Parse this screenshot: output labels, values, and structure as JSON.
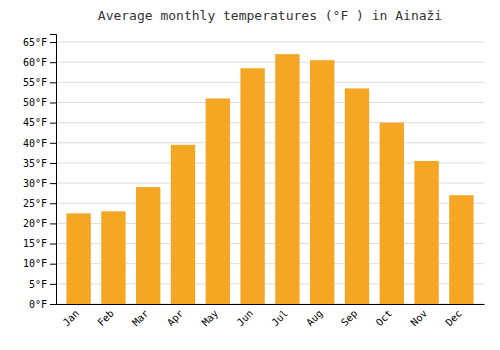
{
  "chart_data": {
    "type": "bar",
    "title": "Average monthly temperatures (°F ) in Ainaži",
    "categories": [
      "Jan",
      "Feb",
      "Mar",
      "Apr",
      "May",
      "Jun",
      "Jul",
      "Aug",
      "Sep",
      "Oct",
      "Nov",
      "Dec"
    ],
    "values": [
      22.5,
      23.0,
      29.0,
      39.5,
      51.0,
      58.5,
      62.0,
      60.5,
      53.5,
      45.0,
      35.5,
      27.0
    ],
    "color": "#F5A623",
    "ylim": [
      0,
      67
    ],
    "yticks": [
      {
        "value": 0,
        "label": "0°F"
      },
      {
        "value": 5,
        "label": "5°F"
      },
      {
        "value": 10,
        "label": "10°F"
      },
      {
        "value": 15,
        "label": "15°F"
      },
      {
        "value": 20,
        "label": "20°F"
      },
      {
        "value": 25,
        "label": "25°F"
      },
      {
        "value": 30,
        "label": "30°F"
      },
      {
        "value": 35,
        "label": "35°F"
      },
      {
        "value": 40,
        "label": "40°F"
      },
      {
        "value": 45,
        "label": "45°F"
      },
      {
        "value": 50,
        "label": "50°F"
      },
      {
        "value": 55,
        "label": "55°F"
      },
      {
        "value": 60,
        "label": "60°F"
      },
      {
        "value": 65,
        "label": "65°F"
      }
    ],
    "grid": true
  }
}
